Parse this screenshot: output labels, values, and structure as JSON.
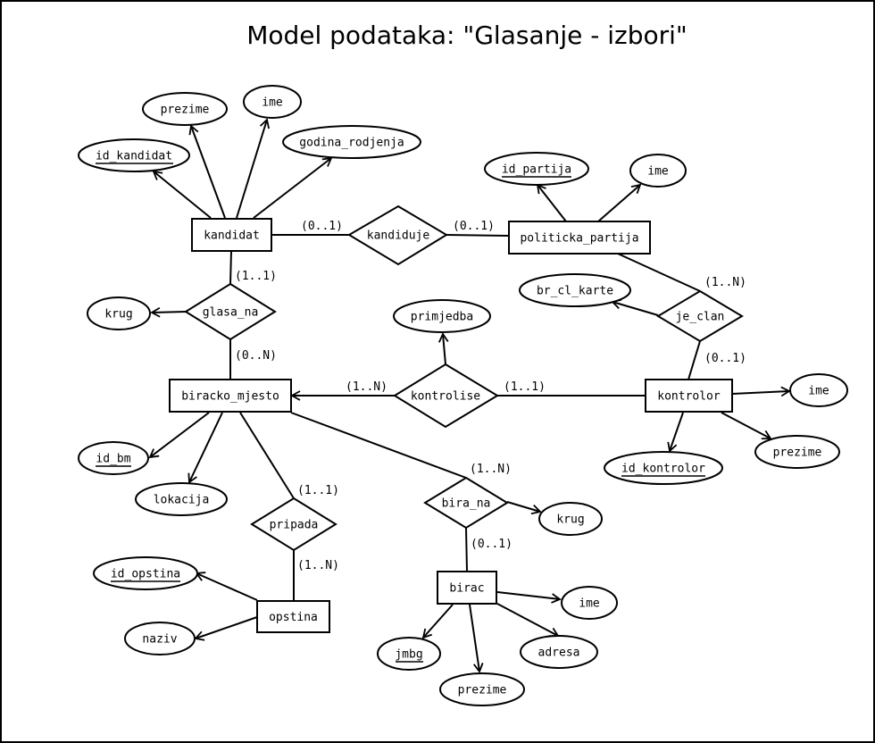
{
  "title": "Model podataka: \"Glasanje - izbori\"",
  "entities": {
    "kandidat": "kandidat",
    "politicka_partija": "politicka_partija",
    "biracko_mjesto": "biracko_mjesto",
    "kontrolor": "kontrolor",
    "opstina": "opstina",
    "birac": "birac"
  },
  "relationships": {
    "kandiduje": "kandiduje",
    "glasa_na": "glasa_na",
    "je_clan": "je_clan",
    "kontrolise": "kontrolise",
    "pripada": "pripada",
    "bira_na": "bira_na"
  },
  "attributes": {
    "kandidat_prezime": "prezime",
    "kandidat_ime": "ime",
    "kandidat_id": "id_kandidat",
    "kandidat_godina": "godina_rodjenja",
    "partija_id": "id_partija",
    "partija_ime": "ime",
    "kontrolor_br_cl_karte": "br_cl_karte",
    "kontrolise_primjedba": "primjedba",
    "glasa_na_krug": "krug",
    "kontrolor_ime": "ime",
    "kontrolor_prezime": "prezime",
    "kontrolor_id": "id_kontrolor",
    "bm_id": "id_bm",
    "bm_lokacija": "lokacija",
    "bira_na_krug": "krug",
    "opstina_id": "id_opstina",
    "opstina_naziv": "naziv",
    "birac_ime": "ime",
    "birac_adresa": "adresa",
    "birac_jmbg": "jmbg",
    "birac_prezime": "prezime"
  },
  "cardinalities": {
    "kandidat_kandiduje": "(0..1)",
    "partija_kandiduje": "(0..1)",
    "kandidat_glasa_na": "(1..1)",
    "bm_glasa_na": "(0..N)",
    "partija_je_clan": "(1..N)",
    "kontrolor_je_clan": "(0..1)",
    "bm_kontrolise": "(1..N)",
    "kontrolor_kontrolise": "(1..1)",
    "bm_pripada": "(1..1)",
    "opstina_pripada": "(1..N)",
    "bm_bira_na": "(1..N)",
    "birac_bira_na": "(0..1)"
  }
}
